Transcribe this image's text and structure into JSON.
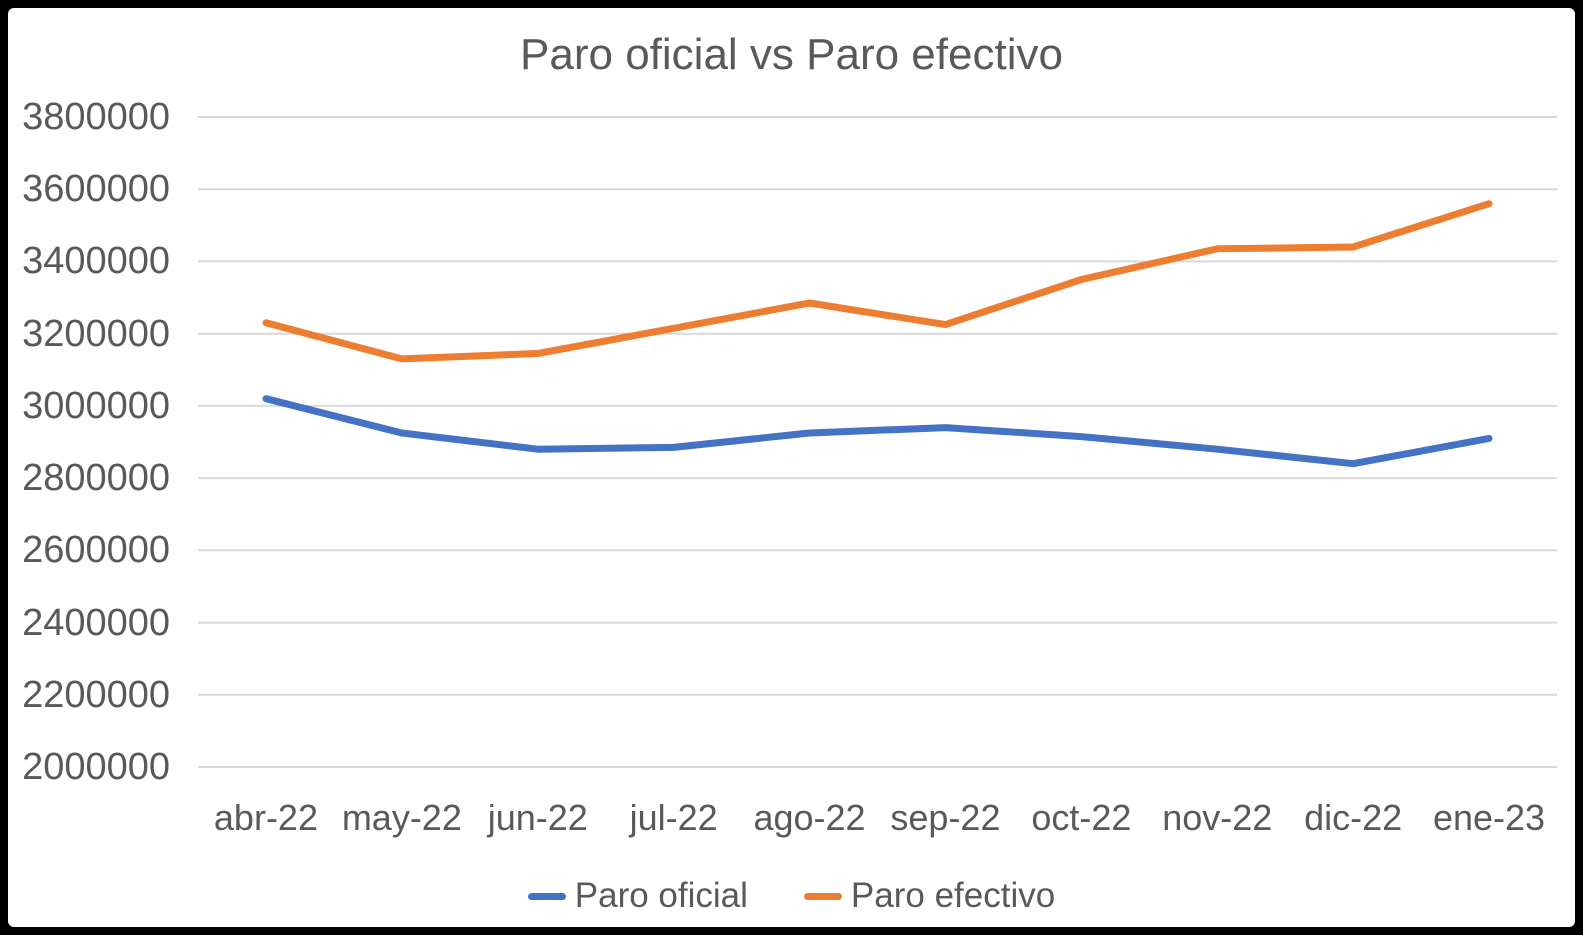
{
  "chart_data": {
    "type": "line",
    "title": "Paro oficial vs Paro efectivo",
    "xlabel": "",
    "ylabel": "",
    "categories": [
      "abr-22",
      "may-22",
      "jun-22",
      "jul-22",
      "ago-22",
      "sep-22",
      "oct-22",
      "nov-22",
      "dic-22",
      "ene-23"
    ],
    "series": [
      {
        "name": "Paro oficial",
        "color": "#4472C4",
        "values": [
          3020000,
          2925000,
          2880000,
          2885000,
          2925000,
          2940000,
          2915000,
          2880000,
          2840000,
          2910000
        ]
      },
      {
        "name": "Paro efectivo",
        "color": "#ED7D31",
        "values": [
          3230000,
          3130000,
          3145000,
          3215000,
          3285000,
          3225000,
          3350000,
          3435000,
          3440000,
          3560000
        ]
      }
    ],
    "ylim": [
      2000000,
      3800000
    ],
    "ytick_step": 200000,
    "yticks": [
      3800000,
      3600000,
      3400000,
      3200000,
      3000000,
      2800000,
      2600000,
      2400000,
      2200000,
      2000000
    ],
    "grid": "horizontal",
    "gridline_color": "#D9D9D9",
    "axis_label_color": "#595959",
    "background_color": "#FFFFFF",
    "frame_color": "#000000",
    "legend_position": "bottom"
  }
}
